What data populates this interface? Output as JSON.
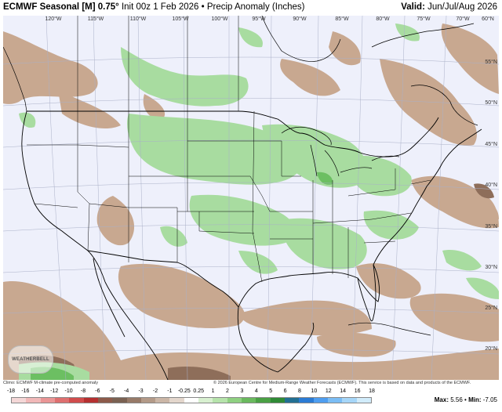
{
  "header": {
    "title_bold": "ECMWF Seasonal [M] 0.75°",
    "title_rest": " Init 00z 1 Feb 2026 • Precip Anomaly (Inches)",
    "valid_bold": "Valid:",
    "valid_rest": " Jun/Jul/Aug 2026"
  },
  "map": {
    "longitude_labels": [
      "120°W",
      "115°W",
      "110°W",
      "105°W",
      "100°W",
      "95°W",
      "90°W",
      "85°W",
      "80°W",
      "75°W",
      "70°W",
      "60°N"
    ],
    "latitude_labels": [
      "55°N",
      "50°N",
      "45°N",
      "40°N",
      "35°N",
      "30°N",
      "25°N",
      "20°N"
    ],
    "logo_text": "WEATHERBELL",
    "colors": {
      "ocean_background": "#eef0fb",
      "dry_anomaly": "#c8a890",
      "wet_anomaly": "#a8dca0",
      "boundaries": "#000000"
    }
  },
  "footer": {
    "climo_note": "Climo: ECMWF M-climate pre-computed anomaly",
    "copyright": "© 2026 European Centre for Medium-Range Weather Forecasts (ECMWF). This service is based on data and products of the ECMWF."
  },
  "legend": {
    "ticks": [
      "-18",
      "-16",
      "-14",
      "-12",
      "-10",
      "-8",
      "-6",
      "-5",
      "-4",
      "-3",
      "-2",
      "-1",
      "-0.25",
      "0.25",
      "1",
      "2",
      "3",
      "4",
      "5",
      "6",
      "8",
      "10",
      "12",
      "14",
      "16",
      "18"
    ],
    "colors": [
      "#f4d7d7",
      "#f1b8b8",
      "#e99595",
      "#de6f6f",
      "#d04c4c",
      "#b53030",
      "#8c5a4a",
      "#7a6152",
      "#977a68",
      "#b39a88",
      "#cbb6a6",
      "#e3d6cc",
      "#ffffff",
      "#d8f0d0",
      "#b6e3ab",
      "#8fd081",
      "#6ab95e",
      "#4aa044",
      "#2f8a36",
      "#226f92",
      "#2b7bd4",
      "#4f9ef0",
      "#7bbdf5",
      "#a6d6f8",
      "#d1ecfb"
    ],
    "max_label": "Max:",
    "max_value": "5.56",
    "min_label": "Min:",
    "min_value": "-7.05",
    "separator": "•"
  }
}
